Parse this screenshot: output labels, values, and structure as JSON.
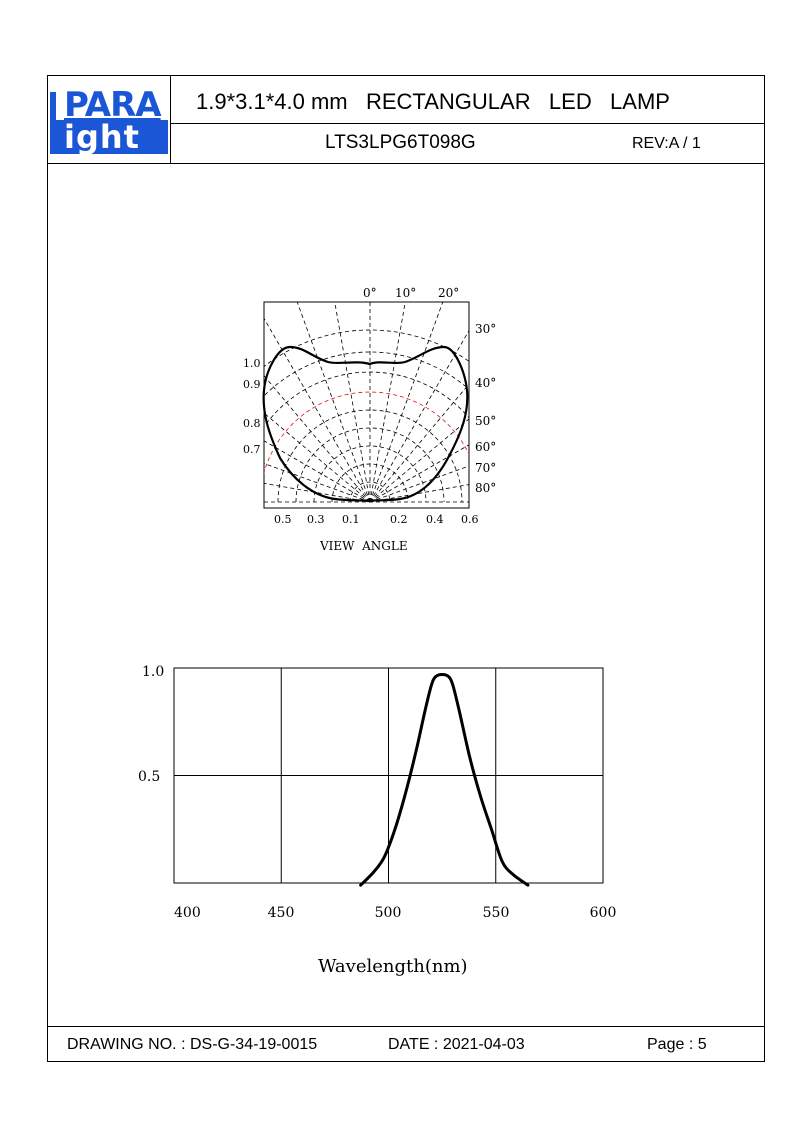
{
  "header": {
    "logo_top": "PARA",
    "logo_bottom": "ight",
    "title": "1.9*3.1*4.0 mm   RECTANGULAR   LED   LAMP",
    "part_number": "LTS3LPG6T098G",
    "revision": "REV:A / 1"
  },
  "polar_chart": {
    "top_labels": [
      "0°",
      "10°",
      "20°"
    ],
    "right_labels": [
      "30°",
      "40°",
      "50°",
      "60°",
      "70°",
      "80°"
    ],
    "left_labels": [
      "1.0",
      "0.9",
      "0.8",
      "0.7"
    ],
    "bottom_labels": [
      "0.5",
      "0.3",
      "0.1",
      "0.2",
      "0.4",
      "0.6"
    ],
    "caption": "VIEW  ANGLE"
  },
  "chart_data": {
    "type": "line",
    "xlabel": "Wavelength(nm)",
    "ylabel": "",
    "xlim": [
      400,
      600
    ],
    "ylim": [
      0,
      1.0
    ],
    "x_ticks": [
      "400",
      "450",
      "500",
      "550",
      "600"
    ],
    "y_ticks": [
      "1.0",
      "0.5"
    ],
    "grid": true,
    "series": [
      {
        "x": [
          487,
          493,
          498,
          503,
          508,
          513,
          517,
          520,
          522,
          525,
          528,
          530,
          533,
          538,
          543,
          548,
          553,
          558,
          565
        ],
        "y": [
          -0.01,
          0.05,
          0.12,
          0.25,
          0.42,
          0.62,
          0.8,
          0.92,
          0.96,
          0.97,
          0.96,
          0.92,
          0.8,
          0.58,
          0.4,
          0.25,
          0.1,
          0.04,
          -0.01
        ]
      }
    ]
  },
  "footer": {
    "drawing_no": "DRAWING NO. : DS-G-34-19-0015",
    "date": "DATE : 2021-04-03",
    "page": "Page : 5"
  }
}
